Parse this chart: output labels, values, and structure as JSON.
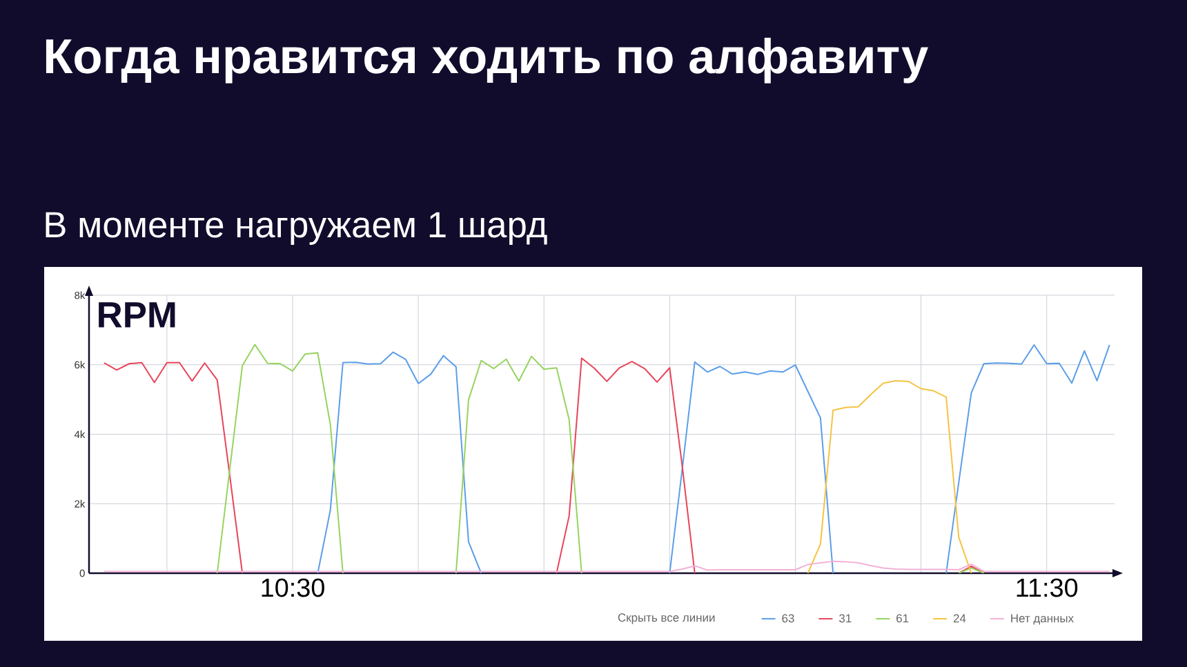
{
  "chart_data": {
    "type": "line",
    "title": "Когда нравится ходить по алфавиту",
    "subtitle": "В моменте нагружаем 1 шард",
    "ylabel": "RPM",
    "annotations": [
      "Скрыть все линии"
    ],
    "x": [
      10.25,
      10.2667,
      10.2833,
      10.3,
      10.3167,
      10.3333,
      10.35,
      10.3667,
      10.3833,
      10.4,
      10.4167,
      10.4333,
      10.45,
      10.4667,
      10.4833,
      10.5,
      10.5167,
      10.5333,
      10.55,
      10.5667,
      10.5833,
      10.6,
      10.6167,
      10.6333,
      10.65,
      10.6667,
      10.6833,
      10.7,
      10.7167,
      10.7333,
      10.75,
      10.7667,
      10.7833,
      10.8,
      10.8167,
      10.8333,
      10.85,
      10.8667,
      10.8833,
      10.9,
      10.9167,
      10.9333,
      10.95,
      10.9667,
      10.9833,
      11,
      11.0167,
      11.0333,
      11.05,
      11.0667,
      11.0833,
      11.1,
      11.1167,
      11.1333,
      11.15,
      11.1667,
      11.1833,
      11.2,
      11.2167,
      11.2333,
      11.25,
      11.2667,
      11.2833,
      11.3,
      11.3167,
      11.3333,
      11.35,
      11.3667,
      11.3833,
      11.4,
      11.4167,
      11.4333,
      11.45,
      11.4667,
      11.4833,
      11.5,
      11.5167,
      11.5333,
      11.55,
      11.5667,
      11.5833
    ],
    "series": [
      {
        "name": "63",
        "color": "#5b9ee8",
        "values": [
          null,
          null,
          null,
          null,
          null,
          null,
          null,
          null,
          null,
          null,
          null,
          null,
          null,
          null,
          null,
          null,
          null,
          0,
          1810,
          6060,
          6070,
          6020,
          6030,
          6360,
          6150,
          5460,
          5730,
          6260,
          5940,
          900,
          0,
          null,
          null,
          null,
          null,
          null,
          null,
          null,
          null,
          null,
          null,
          null,
          null,
          null,
          null,
          0,
          3000,
          6080,
          5790,
          5950,
          5730,
          5790,
          5720,
          5820,
          5790,
          5990,
          5230,
          4470,
          0,
          null,
          null,
          null,
          null,
          null,
          null,
          null,
          null,
          0,
          2600,
          5190,
          6030,
          6050,
          6040,
          6020,
          6570,
          6030,
          6040,
          5470,
          6400,
          5540,
          6570
        ]
      },
      {
        "name": "31",
        "color": "#e8445a",
        "values": [
          6050,
          5850,
          6030,
          6060,
          5490,
          6060,
          6060,
          5530,
          6050,
          5560,
          2800,
          0,
          null,
          null,
          null,
          null,
          null,
          null,
          null,
          null,
          null,
          null,
          null,
          null,
          null,
          null,
          null,
          null,
          null,
          null,
          null,
          null,
          null,
          null,
          null,
          null,
          0,
          1650,
          6190,
          5900,
          5520,
          5910,
          6090,
          5890,
          5500,
          5910,
          3080,
          0,
          null,
          null,
          null,
          null,
          null,
          null,
          null,
          null,
          null,
          null,
          null,
          null,
          null,
          null,
          null,
          null,
          null,
          null,
          null,
          null,
          0,
          200,
          0,
          null,
          null,
          null,
          null,
          null,
          null,
          null,
          null,
          null,
          null
        ]
      },
      {
        "name": "61",
        "color": "#96d35f",
        "values": [
          null,
          null,
          null,
          null,
          null,
          null,
          null,
          null,
          null,
          0,
          3000,
          5970,
          6580,
          6040,
          6030,
          5820,
          6310,
          6340,
          4280,
          0,
          null,
          null,
          null,
          null,
          null,
          null,
          null,
          null,
          0,
          4990,
          6120,
          5890,
          6160,
          5530,
          6240,
          5870,
          5910,
          4420,
          0,
          null,
          null,
          null,
          null,
          null,
          null,
          null,
          null,
          null,
          null,
          null,
          null,
          null,
          null,
          null,
          null,
          null,
          null,
          null,
          null,
          null,
          null,
          null,
          null,
          null,
          null,
          null,
          null,
          null,
          0,
          150,
          0,
          null,
          null,
          null,
          null,
          null,
          null,
          null,
          null,
          null,
          null
        ]
      },
      {
        "name": "24",
        "color": "#f5c342",
        "values": [
          null,
          null,
          null,
          null,
          null,
          null,
          null,
          null,
          null,
          null,
          null,
          null,
          null,
          null,
          null,
          null,
          null,
          null,
          null,
          null,
          null,
          null,
          null,
          null,
          null,
          null,
          null,
          null,
          null,
          null,
          null,
          null,
          null,
          null,
          null,
          null,
          null,
          null,
          null,
          null,
          null,
          null,
          null,
          null,
          null,
          null,
          null,
          null,
          null,
          null,
          null,
          null,
          null,
          null,
          null,
          null,
          0,
          840,
          4690,
          4770,
          4790,
          5140,
          5470,
          5540,
          5520,
          5310,
          5250,
          5070,
          1040,
          0,
          null,
          null,
          null,
          null,
          null,
          null,
          null,
          null,
          null,
          null,
          null
        ]
      },
      {
        "name": "Нет данных",
        "color": "#f3b0d6",
        "values": [
          50,
          50,
          50,
          50,
          50,
          50,
          50,
          50,
          50,
          50,
          50,
          50,
          50,
          50,
          50,
          50,
          50,
          50,
          50,
          50,
          50,
          50,
          50,
          50,
          50,
          50,
          50,
          50,
          50,
          50,
          50,
          50,
          50,
          50,
          50,
          50,
          50,
          50,
          50,
          50,
          50,
          50,
          50,
          50,
          50,
          50,
          120,
          210,
          90,
          100,
          100,
          100,
          100,
          100,
          100,
          100,
          250,
          300,
          340,
          330,
          300,
          220,
          150,
          120,
          110,
          110,
          110,
          110,
          100,
          260,
          50,
          50,
          50,
          50,
          50,
          50,
          50,
          50,
          50,
          50,
          50
        ]
      }
    ],
    "xlim": [
      10.23,
      11.59
    ],
    "xticks": [
      {
        "value": 10.3333,
        "label": null
      },
      {
        "value": 10.5,
        "label": "10:30"
      },
      {
        "value": 10.6667,
        "label": null
      },
      {
        "value": 10.8333,
        "label": null
      },
      {
        "value": 11,
        "label": null
      },
      {
        "value": 11.1667,
        "label": null
      },
      {
        "value": 11.3333,
        "label": null
      },
      {
        "value": 11.5,
        "label": "11:30"
      }
    ],
    "ylim": [
      0,
      8000
    ],
    "yticks": [
      0,
      {
        "value": 2000,
        "label": "2k"
      },
      {
        "value": 4000,
        "label": "4k"
      },
      {
        "value": 6000,
        "label": "6k"
      },
      {
        "value": 8000,
        "label": "8k"
      }
    ],
    "grid": true,
    "legend": "bottom"
  }
}
